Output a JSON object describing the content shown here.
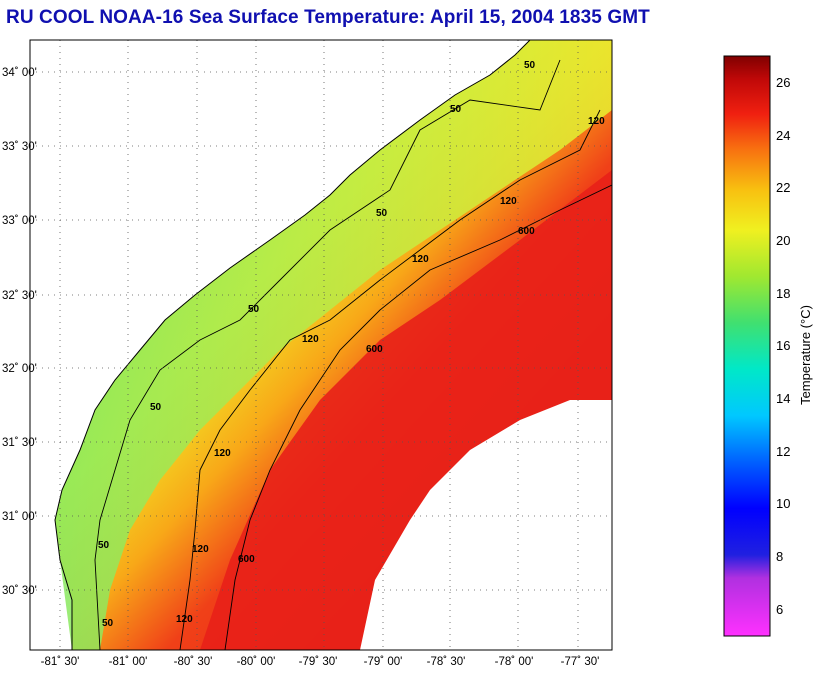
{
  "title": "RU COOL  NOAA-16  Sea Surface Temperature:  April 15, 2004 1835 GMT",
  "latitude_labels": [
    "34˚ 00'",
    "33˚ 30'",
    "33˚ 00'",
    "32˚ 30'",
    "32˚ 00'",
    "31˚ 30'",
    "31˚ 00'",
    "30˚ 30'"
  ],
  "longitude_labels": [
    "-81˚ 30'",
    "-81˚ 00'",
    "-80˚ 30'",
    "-80˚ 00'",
    "-79˚ 30'",
    "-79˚ 00'",
    "-78˚ 30'",
    "-78˚ 00'",
    "-77˚ 30'"
  ],
  "colorbar": {
    "title": "Temperature (°C)",
    "ticks": [
      "26",
      "24",
      "22",
      "20",
      "18",
      "16",
      "14",
      "12",
      "10",
      "8",
      "6"
    ],
    "range": [
      5,
      27
    ]
  },
  "contours": {
    "labels": [
      "50",
      "50",
      "50",
      "50",
      "50",
      "50",
      "50",
      "120",
      "120",
      "120",
      "120",
      "120",
      "120",
      "120",
      "600",
      "600",
      "600"
    ]
  },
  "colors": {
    "title": "#1010b0",
    "land": "#ffffff",
    "cold": "#3cc8a0",
    "warm": "#e01818"
  }
}
